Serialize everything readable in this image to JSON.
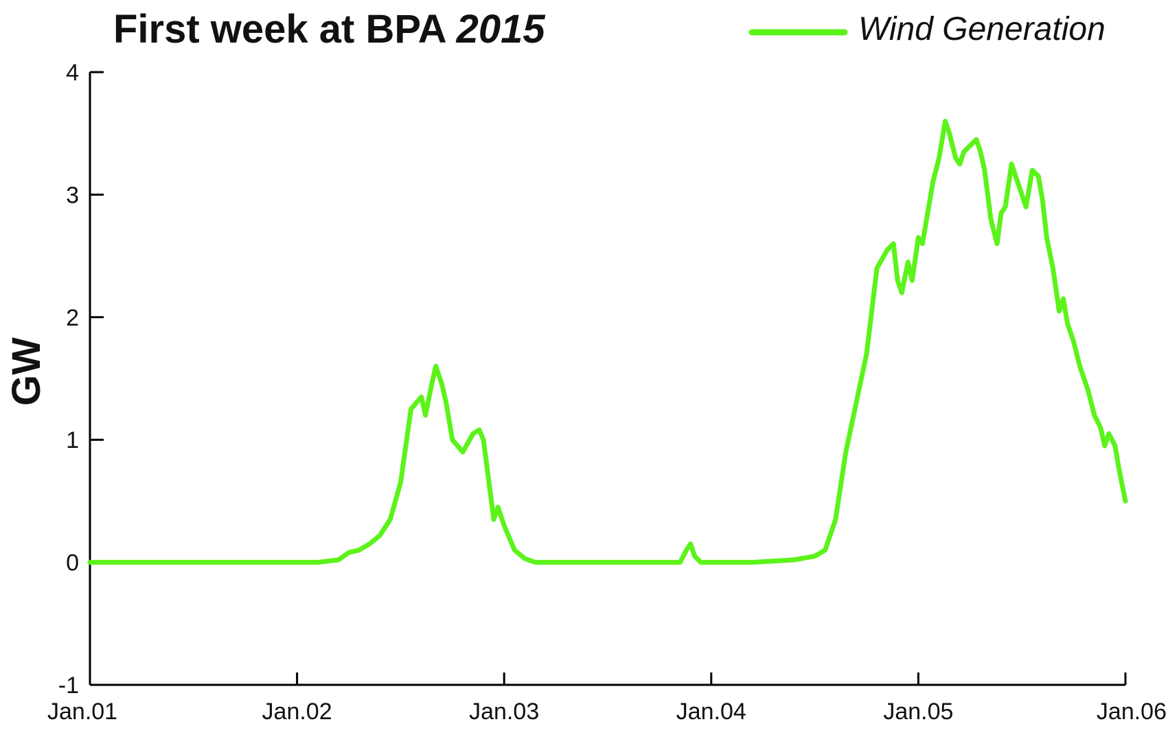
{
  "chart_data": {
    "type": "line",
    "title": "First week at BPA",
    "title_year": "2015",
    "xlabel": "",
    "ylabel": "GW",
    "ylim": [
      -1,
      4
    ],
    "yticks": [
      -1,
      0,
      1,
      2,
      3,
      4
    ],
    "xlim": [
      0,
      5
    ],
    "xtick_labels": [
      "Jan.01",
      "Jan.02",
      "Jan.03",
      "Jan.04",
      "Jan.05",
      "Jan.06"
    ],
    "grid": false,
    "legend_position": "top-right",
    "colors": {
      "series": "#5cf31a",
      "axis": "#000000"
    },
    "series": [
      {
        "name": "Wind Generation",
        "x": [
          0,
          0.25,
          0.5,
          0.75,
          1.0,
          1.1,
          1.2,
          1.25,
          1.3,
          1.35,
          1.4,
          1.45,
          1.5,
          1.55,
          1.6,
          1.62,
          1.65,
          1.67,
          1.7,
          1.72,
          1.75,
          1.8,
          1.85,
          1.88,
          1.9,
          1.95,
          1.97,
          2.0,
          2.05,
          2.1,
          2.15,
          2.2,
          2.3,
          2.5,
          2.7,
          2.85,
          2.88,
          2.9,
          2.92,
          2.95,
          3.0,
          3.2,
          3.4,
          3.5,
          3.55,
          3.6,
          3.65,
          3.7,
          3.75,
          3.8,
          3.85,
          3.88,
          3.9,
          3.92,
          3.95,
          3.97,
          4.0,
          4.02,
          4.05,
          4.07,
          4.1,
          4.13,
          4.15,
          4.18,
          4.2,
          4.22,
          4.25,
          4.28,
          4.3,
          4.32,
          4.35,
          4.38,
          4.4,
          4.42,
          4.45,
          4.48,
          4.5,
          4.52,
          4.55,
          4.58,
          4.6,
          4.62,
          4.65,
          4.68,
          4.7,
          4.72,
          4.75,
          4.78,
          4.8,
          4.82,
          4.85,
          4.88,
          4.9,
          4.92,
          4.95,
          4.97,
          5.0
        ],
        "values": [
          0,
          0,
          0,
          0,
          0,
          0,
          0.02,
          0.08,
          0.1,
          0.15,
          0.22,
          0.35,
          0.65,
          1.25,
          1.35,
          1.2,
          1.45,
          1.6,
          1.45,
          1.3,
          1.0,
          0.9,
          1.05,
          1.08,
          1.0,
          0.35,
          0.45,
          0.3,
          0.1,
          0.03,
          0,
          0,
          0,
          0,
          0,
          0,
          0.1,
          0.15,
          0.05,
          0,
          0,
          0,
          0.02,
          0.05,
          0.1,
          0.35,
          0.9,
          1.3,
          1.7,
          2.4,
          2.55,
          2.6,
          2.3,
          2.2,
          2.45,
          2.3,
          2.65,
          2.6,
          2.9,
          3.1,
          3.3,
          3.6,
          3.5,
          3.3,
          3.25,
          3.35,
          3.4,
          3.45,
          3.35,
          3.2,
          2.8,
          2.6,
          2.85,
          2.9,
          3.25,
          3.1,
          3.0,
          2.9,
          3.2,
          3.15,
          2.95,
          2.65,
          2.4,
          2.05,
          2.15,
          1.95,
          1.8,
          1.6,
          1.5,
          1.4,
          1.2,
          1.1,
          0.95,
          1.05,
          0.95,
          0.75,
          0.5
        ]
      }
    ]
  }
}
